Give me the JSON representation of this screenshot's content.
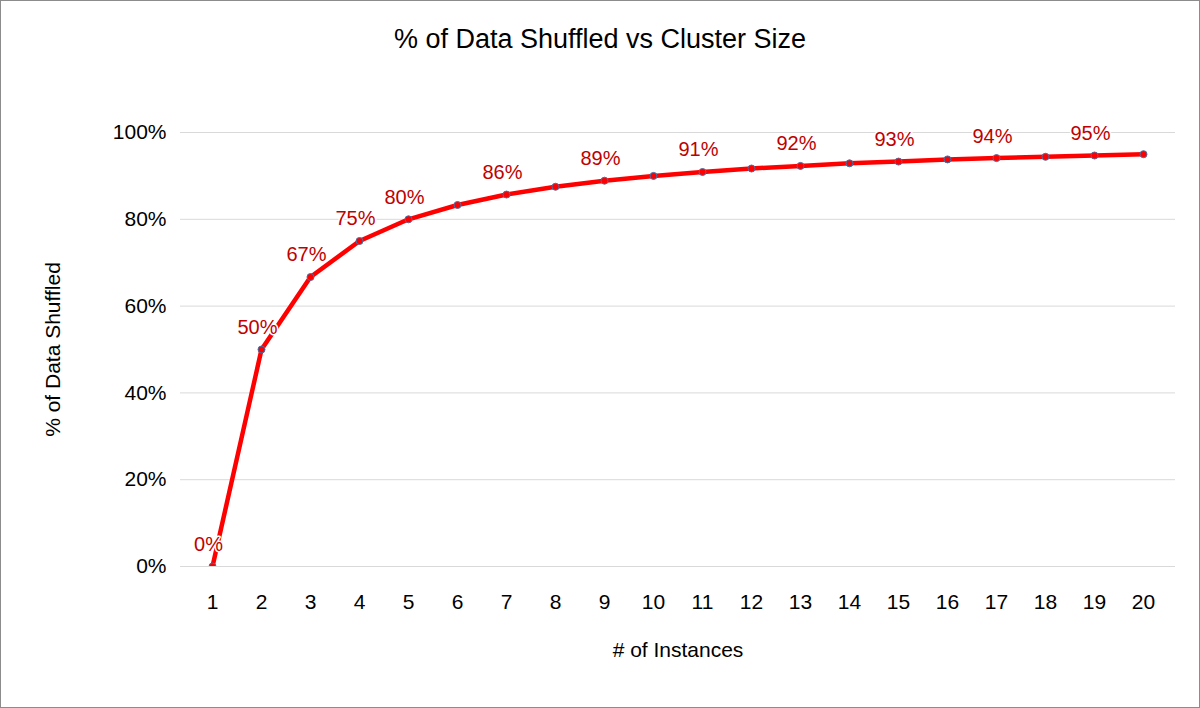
{
  "chart_data": {
    "type": "line",
    "title": "% of Data Shuffled vs Cluster Size",
    "x_label": "# of Instances",
    "y_label": "% of Data Shuffled",
    "categories": [
      "1",
      "2",
      "3",
      "4",
      "5",
      "6",
      "7",
      "8",
      "9",
      "10",
      "11",
      "12",
      "13",
      "14",
      "15",
      "16",
      "17",
      "18",
      "19",
      "20"
    ],
    "values": [
      0,
      50,
      66.7,
      75,
      80,
      83.3,
      85.7,
      87.5,
      88.9,
      90,
      90.9,
      91.7,
      92.3,
      92.9,
      93.3,
      93.8,
      94.1,
      94.4,
      94.7,
      95
    ],
    "value_labels": [
      "0%",
      "50%",
      "67%",
      "75%",
      "80%",
      null,
      "86%",
      null,
      "89%",
      null,
      "91%",
      null,
      "92%",
      null,
      "93%",
      null,
      "94%",
      null,
      "95%",
      null
    ],
    "data_labels": true,
    "color": "#ff0000",
    "marker": "circle",
    "ylim": [
      0,
      100
    ],
    "yticks": [
      {
        "value": 0,
        "label": "0%"
      },
      {
        "value": 20,
        "label": "20%"
      },
      {
        "value": 40,
        "label": "40%"
      },
      {
        "value": 60,
        "label": "60%"
      },
      {
        "value": 80,
        "label": "80%"
      },
      {
        "value": 100,
        "label": "100%"
      }
    ],
    "grid": true
  }
}
